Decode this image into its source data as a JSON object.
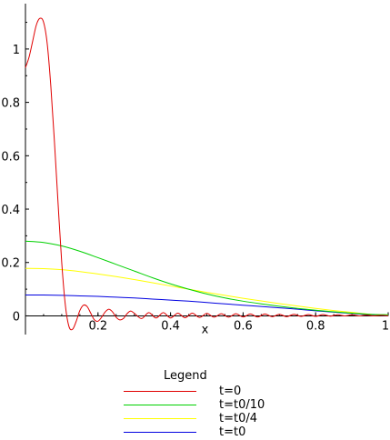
{
  "chart_data": {
    "type": "line",
    "title": "",
    "xlabel": "x",
    "ylabel": "",
    "xlim": [
      0,
      1
    ],
    "ylim": [
      -0.07,
      1.17
    ],
    "x_ticks": [
      0.2,
      0.4,
      0.6,
      0.8,
      1
    ],
    "x_tick_labels": [
      "0.2",
      "0.4",
      "0.6",
      "0.8",
      "1"
    ],
    "y_ticks": [
      0,
      0.2,
      0.4,
      0.6,
      0.8,
      1
    ],
    "y_tick_labels": [
      "0",
      "0.2",
      "0.4",
      "0.6",
      "0.8",
      "1"
    ],
    "grid": false,
    "legend": {
      "title": "Legend",
      "placement": "bottom"
    },
    "series": [
      {
        "name": "t=0",
        "color": "#e00000",
        "x": [
          0,
          0.01,
          0.02,
          0.03,
          0.04,
          0.05,
          0.06,
          0.07,
          0.08,
          0.09,
          0.1,
          0.11,
          0.12,
          0.13,
          0.14,
          0.15,
          0.16,
          0.17,
          0.18,
          0.19,
          0.2,
          0.21,
          0.22,
          0.23,
          0.24,
          0.25,
          0.26,
          0.27,
          0.28,
          0.29,
          0.3,
          0.32,
          0.34,
          0.36,
          0.38,
          0.4,
          0.42,
          0.44,
          0.46,
          0.48,
          0.5,
          0.52,
          0.54,
          0.56,
          0.58,
          0.6,
          0.62,
          0.64,
          0.66,
          0.68,
          0.7,
          0.72,
          0.74,
          0.76,
          0.78,
          0.8,
          0.82,
          0.84,
          0.86,
          0.88,
          0.9,
          0.92,
          0.94,
          0.96,
          0.98,
          1
        ],
        "y": [
          0.93,
          0.97,
          1.03,
          1.09,
          1.115,
          1.1,
          1.02,
          0.86,
          0.65,
          0.42,
          0.2,
          0.04,
          -0.04,
          -0.05,
          -0.02,
          0.02,
          0.04,
          0.035,
          0.01,
          -0.015,
          -0.02,
          -0.005,
          0.015,
          0.025,
          0.015,
          -0.005,
          -0.015,
          -0.01,
          0.008,
          0.018,
          0.01,
          -0.01,
          0.012,
          -0.008,
          0.012,
          -0.008,
          0.01,
          -0.007,
          0.01,
          -0.006,
          0.009,
          -0.005,
          0.008,
          -0.005,
          0.008,
          -0.004,
          0.007,
          -0.004,
          0.007,
          -0.003,
          0.006,
          -0.003,
          0.006,
          -0.002,
          0.005,
          -0.002,
          0.005,
          -0.001,
          0.004,
          0,
          0.004,
          0,
          0.003,
          0,
          0.002,
          0
        ]
      },
      {
        "name": "t=t0/10",
        "color": "#00d000",
        "x": [
          0,
          0.05,
          0.1,
          0.15,
          0.2,
          0.25,
          0.3,
          0.35,
          0.4,
          0.45,
          0.5,
          0.55,
          0.6,
          0.65,
          0.7,
          0.75,
          0.8,
          0.85,
          0.9,
          0.95,
          1
        ],
        "y": [
          0.28,
          0.275,
          0.262,
          0.242,
          0.218,
          0.193,
          0.168,
          0.143,
          0.12,
          0.1,
          0.082,
          0.067,
          0.055,
          0.045,
          0.036,
          0.028,
          0.021,
          0.015,
          0.01,
          0.006,
          0.004
        ]
      },
      {
        "name": "t=t0/4",
        "color": "#ffff00",
        "x": [
          0,
          0.05,
          0.1,
          0.15,
          0.2,
          0.25,
          0.3,
          0.35,
          0.4,
          0.45,
          0.5,
          0.55,
          0.6,
          0.65,
          0.7,
          0.75,
          0.8,
          0.85,
          0.9,
          0.95,
          1
        ],
        "y": [
          0.178,
          0.177,
          0.173,
          0.166,
          0.157,
          0.147,
          0.136,
          0.124,
          0.112,
          0.1,
          0.088,
          0.077,
          0.066,
          0.056,
          0.046,
          0.037,
          0.028,
          0.02,
          0.013,
          0.006,
          0.002
        ]
      },
      {
        "name": "t=t0",
        "color": "#0000e0",
        "x": [
          0,
          0.05,
          0.1,
          0.15,
          0.2,
          0.25,
          0.3,
          0.35,
          0.4,
          0.45,
          0.5,
          0.55,
          0.6,
          0.65,
          0.7,
          0.75,
          0.8,
          0.85,
          0.9,
          0.95,
          1
        ],
        "y": [
          0.078,
          0.078,
          0.077,
          0.075,
          0.073,
          0.07,
          0.067,
          0.063,
          0.059,
          0.055,
          0.05,
          0.045,
          0.04,
          0.035,
          0.03,
          0.025,
          0.019,
          0.014,
          0.009,
          0.004,
          0
        ]
      }
    ]
  }
}
